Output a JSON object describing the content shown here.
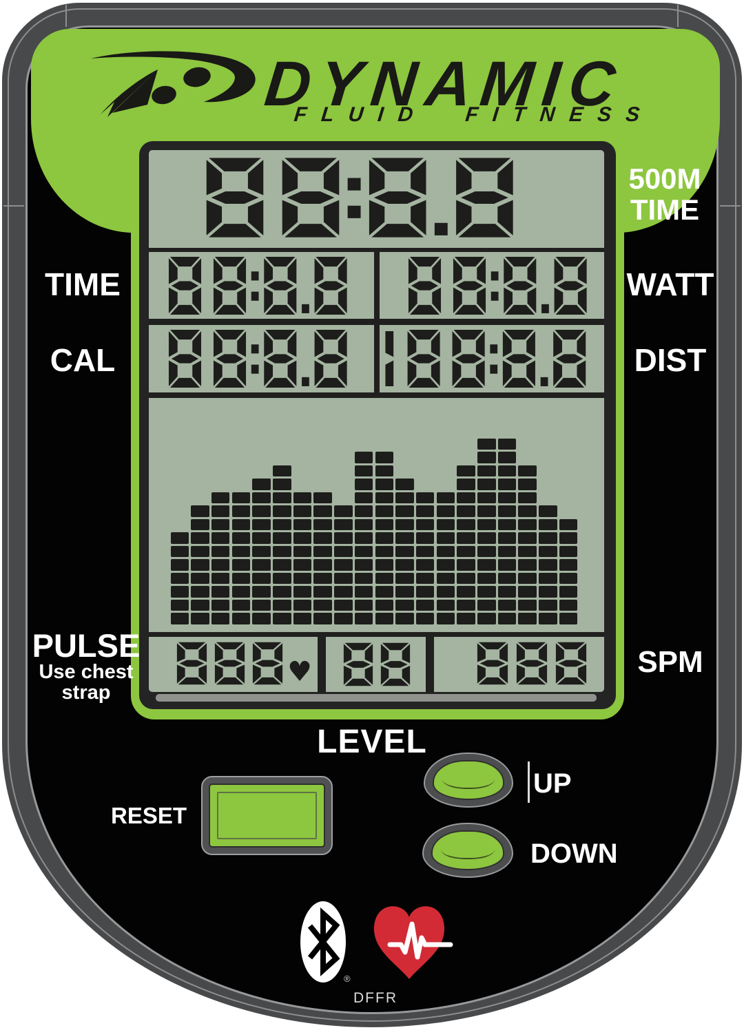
{
  "brand": {
    "name": "DYNAMIC",
    "tagline": "FLUID FITNESS"
  },
  "labels": {
    "metric_500m_line1": "500M",
    "metric_500m_line2": "TIME",
    "time": "TIME",
    "cal": "CAL",
    "watt": "WATT",
    "dist": "DIST",
    "pulse": "PULSE",
    "pulse_sub1": "Use chest",
    "pulse_sub2": "strap",
    "spm": "SPM",
    "level": "LEVEL"
  },
  "display": {
    "main_value": "88:8.8",
    "time": "88:8.8",
    "watt": "88:8.8",
    "cal": "88:8.8",
    "dist": "188:8.8",
    "pulse": "888",
    "level": "88",
    "spm": "888",
    "pulse_heart": "♥"
  },
  "buttons": {
    "reset": "RESET",
    "up": "UP",
    "down": "DOWN"
  },
  "footer": {
    "model": "DFFR",
    "registered_mark": "®"
  },
  "icons": {
    "logo": "brand-swoosh-icon",
    "bluetooth": "bluetooth-icon",
    "heart_rate": "heart-rate-icon",
    "lcd_heart": "heart-icon"
  },
  "colors": {
    "accent_green": "#8dc63f",
    "lcd_background": "#a4b4a1",
    "digit_color": "#1d1d1b",
    "frame_gray": "#48494b",
    "heart_red": "#d22b35",
    "label_white": "#ffffff"
  },
  "chart_data": {
    "type": "bar",
    "title": "workout effort bar graph (LCD pixel grid)",
    "xlabel": "",
    "ylabel": "",
    "columns": 20,
    "rows": 14,
    "values": [
      7,
      9,
      10,
      10,
      11,
      12,
      10,
      10,
      9,
      13,
      13,
      11,
      10,
      10,
      12,
      14,
      14,
      12,
      9,
      8
    ],
    "ylim": [
      0,
      14
    ],
    "grid": true,
    "legend": false
  }
}
